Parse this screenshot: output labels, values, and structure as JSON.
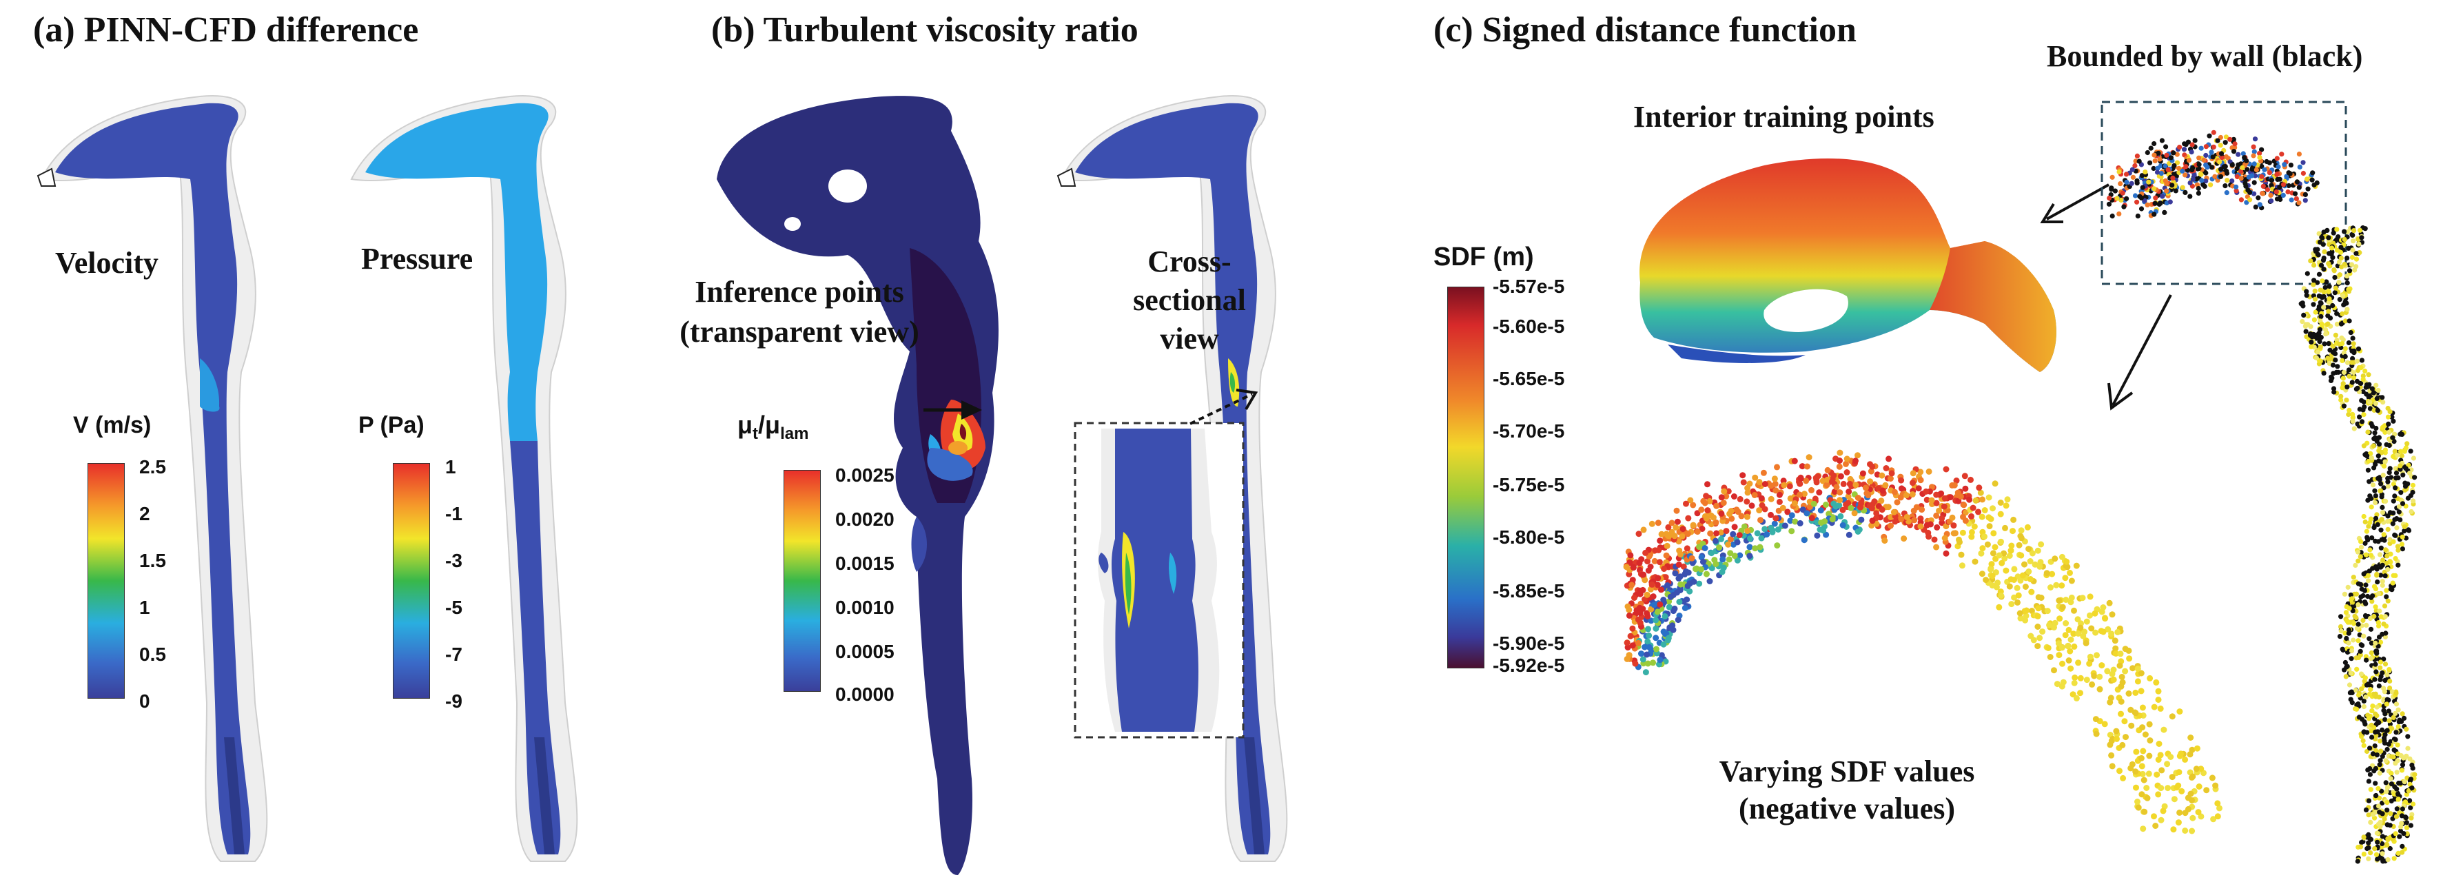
{
  "panels": {
    "a": {
      "title": "(a) PINN-CFD difference",
      "velocity_label": "Velocity",
      "pressure_label": "Pressure",
      "v_colorbar": {
        "title": "V (m/s)",
        "ticks": [
          "2.5",
          "2",
          "1.5",
          "1",
          "0.5",
          "0"
        ]
      },
      "p_colorbar": {
        "title": "P (Pa)",
        "ticks": [
          "1",
          "-1",
          "-3",
          "-5",
          "-7",
          "-9"
        ]
      }
    },
    "b": {
      "title": "(b) Turbulent viscosity ratio",
      "inference_label_1": "Inference points",
      "inference_label_2": "(transparent view)",
      "cross_label_1": "Cross-",
      "cross_label_2": "sectional",
      "cross_label_3": "view",
      "colorbar": {
        "title_mu": "μ",
        "title_t": "t",
        "title_slash": "/μ",
        "title_lam": "lam",
        "ticks": [
          "0.0025",
          "0.0020",
          "0.0015",
          "0.0010",
          "0.0005",
          "0.0000"
        ]
      }
    },
    "c": {
      "title": "(c) Signed distance function",
      "bounded_label": "Bounded by wall (black)",
      "interior_label": "Interior training points",
      "varying_label_1": "Varying SDF values",
      "varying_label_2": "(negative values)",
      "colorbar": {
        "title": "SDF (m)",
        "ticks": [
          "-5.57e-5",
          "-5.60e-5",
          "-5.65e-5",
          "-5.70e-5",
          "-5.75e-5",
          "-5.80e-5",
          "-5.85e-5",
          "-5.90e-5",
          "-5.92e-5"
        ]
      }
    }
  },
  "colors": {
    "jet_top": "#e8302a",
    "jet_bottom": "#3a4aa8",
    "airway_light": "#2aa6e8",
    "airway_dark": "#3c4fb0",
    "sdf_dark": "#4a1030"
  }
}
